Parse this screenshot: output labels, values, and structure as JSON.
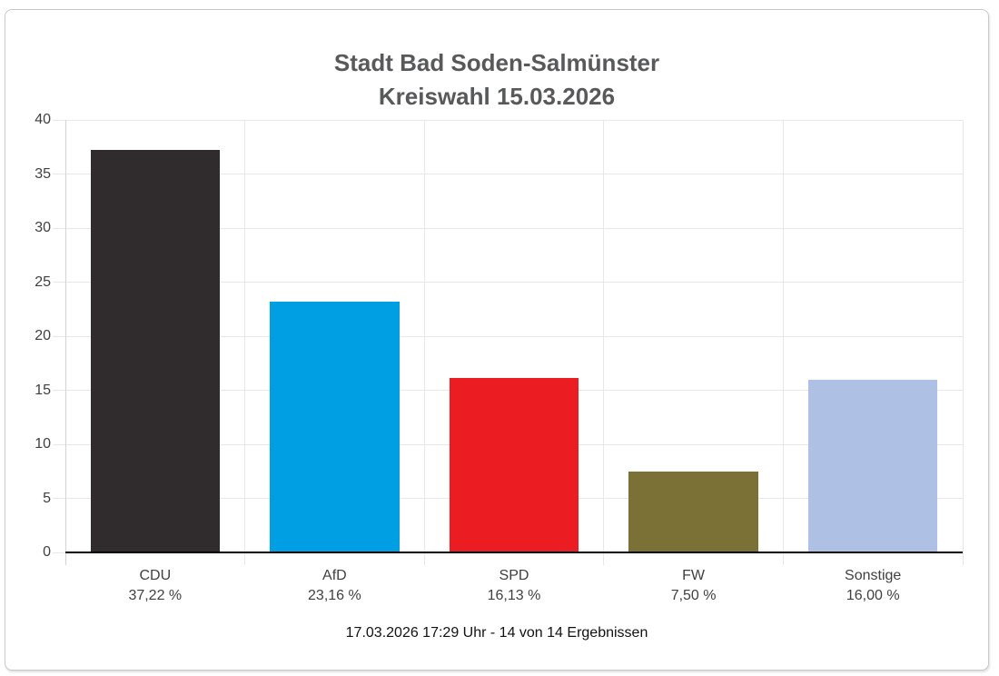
{
  "title": {
    "line1": "Stadt Bad Soden-Salmünster",
    "line2": "Kreiswahl 15.03.2026"
  },
  "footer": "17.03.2026 17:29 Uhr - 14 von 14 Ergebnissen",
  "chart_data": {
    "type": "bar",
    "title": "Stadt Bad Soden-Salmünster Kreiswahl 15.03.2026",
    "categories": [
      "CDU",
      "AfD",
      "SPD",
      "FW",
      "Sonstige"
    ],
    "values": [
      37.22,
      23.16,
      16.13,
      7.5,
      16.0
    ],
    "value_labels": [
      "37,22 %",
      "23,16 %",
      "16,13 %",
      "7,50 %",
      "16,00 %"
    ],
    "bar_colors": [
      "#302c2d",
      "#009ee2",
      "#ec1c23",
      "#7b7136",
      "#aec0e3"
    ],
    "xlabel": "",
    "ylabel": "",
    "ylim": [
      0,
      40
    ],
    "yticks": [
      0,
      5,
      10,
      15,
      20,
      25,
      30,
      35,
      40
    ],
    "grid": true,
    "legend": false,
    "status_line": "17.03.2026 17:29 Uhr - 14 von 14 Ergebnissen"
  },
  "colors": {
    "title_text": "#58595b",
    "axis_text": "#404040",
    "gridline": "#e7e7e7",
    "baseline": "#000000",
    "card_border": "#c9c9c9"
  }
}
